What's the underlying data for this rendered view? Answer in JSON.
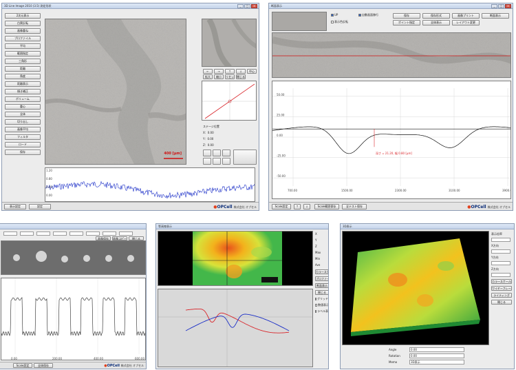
{
  "win1": {
    "title": "3D Line Image 2010 (3.5) 測定形状",
    "left_buttons": [
      "2次元表示",
      "白黒反転",
      "画像重ね",
      "プロファイル",
      "平均",
      "範囲指定",
      "三角形",
      "距離",
      "角度",
      "距離表示",
      "傾き補正",
      "ボリューム",
      "重心",
      "全体",
      "切り出し",
      "画像平均",
      "フィルタ",
      "ロード",
      "保存"
    ],
    "image_scale_label": "400 [μm]",
    "ctrl_buttons": [
      "←",
      "→",
      "↑",
      "↓",
      "中心",
      "拡大",
      "縮小",
      "リセット",
      "閉じる"
    ],
    "right_text": [
      "ステージ位置",
      "X：0.00",
      "Y：0.00",
      "Z：0.00"
    ],
    "bottom_tabs": [
      "表示設定",
      "設定"
    ],
    "logo_main": "OPCell",
    "logo_sub": "株式会社 オプセル",
    "y_ticks": [
      "1.20",
      "0.80",
      "0.40",
      "0.00"
    ]
  },
  "win2": {
    "title": "断面表示",
    "checks": [
      "UP",
      "自動画面移行",
      "表示色反転"
    ],
    "buttons": [
      "保存",
      "保存形式",
      "画像プリント",
      "断面表示",
      "ポイント指定",
      "全体表示",
      "レイアウト変更"
    ],
    "y_ticks": [
      "50.00",
      "25.00",
      "0.00",
      "-25.00",
      "-50.00"
    ],
    "x_ticks": [
      "700.00",
      "1500.00",
      "2300.00",
      "3100.00",
      "3900.00"
    ],
    "annotation": "深さ = 21.20, 幅 0.80 [μm]",
    "bottom_buttons": [
      "Scale設定",
      "↑",
      "↓",
      "Scale範囲保存",
      "全テスト保存"
    ],
    "logo_main": "OPCell",
    "logo_sub": "株式会社 オプセル"
  },
  "win3": {
    "buttons": [
      "画像保存",
      "画像コピー",
      "閉じる"
    ],
    "x_ticks": [
      "0.00",
      "200.00",
      "400.00",
      "600.00"
    ],
    "bottom_buttons": [
      "Scale設定",
      "全体保存"
    ],
    "logo_main": "OPCell",
    "logo_sub": "株式会社 オプセル"
  },
  "win4": {
    "title": "等高線表示",
    "right_labels": [
      "X",
      "Y",
      "Z",
      "Max",
      "Min",
      "Ave"
    ],
    "right_buttons": [
      "カラースケール",
      "プロファイル表示",
      "断面表示",
      "閉じる"
    ],
    "checks": [
      "グリッド表示",
      "数値表示",
      "ラベル表示"
    ]
  },
  "win5": {
    "title": "3D表示",
    "right_labels": [
      "表示倍率",
      "X方向",
      "Y方向",
      "Z方向"
    ],
    "right_buttons": [
      "カラースケール",
      "ワイヤーフレーム",
      "ライティング",
      "閉じる"
    ],
    "info_rows": [
      {
        "key": "Angle",
        "val": "0.00"
      },
      {
        "key": "Rotation",
        "val": "0.00"
      },
      {
        "key": "Memo",
        "val": "3D表示"
      }
    ]
  },
  "colors": {
    "accent": "#2a62c9",
    "plot_blue": "#1a2ec7",
    "plot_red": "#d9252a",
    "logo": "#0b2d78"
  }
}
